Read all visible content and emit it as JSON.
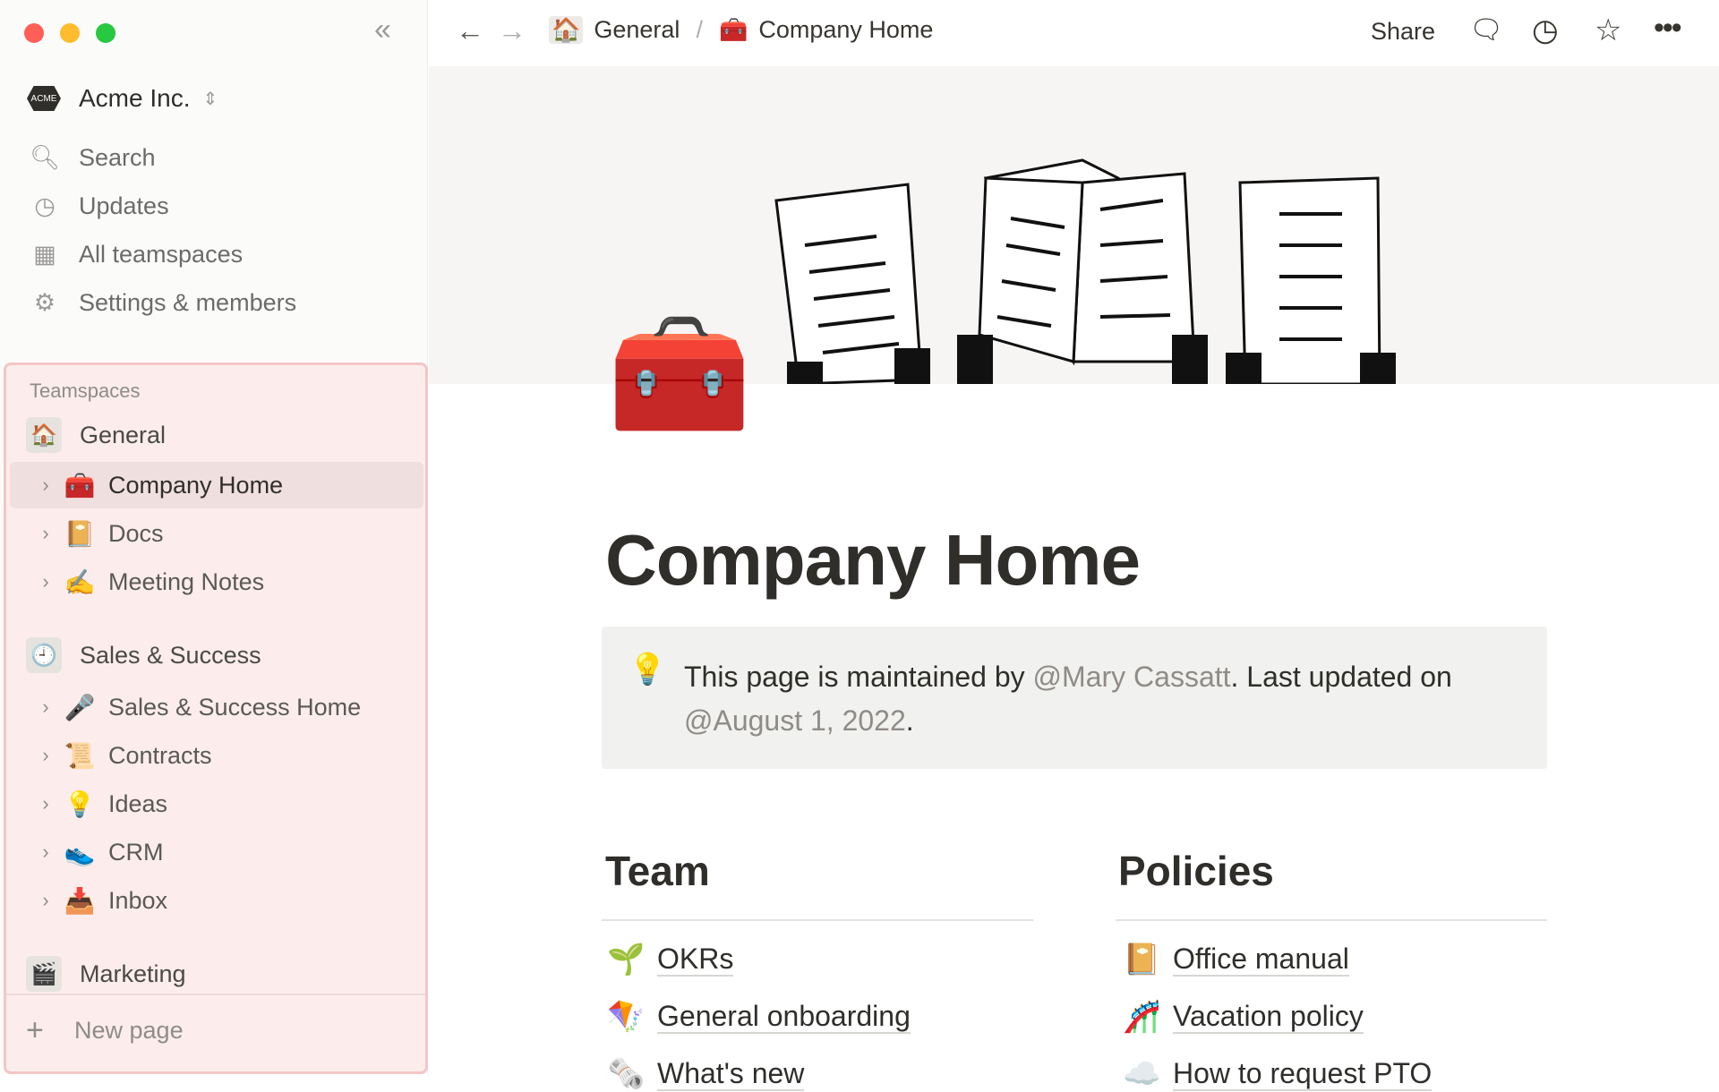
{
  "sidebar": {
    "workspace": "Acme Inc.",
    "workspace_logo": "ACME",
    "nav": [
      {
        "label": "Search",
        "icon": "search-icon"
      },
      {
        "label": "Updates",
        "icon": "clock-icon"
      },
      {
        "label": "All teamspaces",
        "icon": "building-icon"
      },
      {
        "label": "Settings & members",
        "icon": "gear-icon"
      }
    ],
    "teamspaces_label": "Teamspaces",
    "groups": [
      {
        "label": "General",
        "icon": "🏠",
        "pages": [
          {
            "label": "Company Home",
            "emoji": "🧰",
            "selected": true
          },
          {
            "label": "Docs",
            "emoji": "📔"
          },
          {
            "label": "Meeting Notes",
            "emoji": "✍️"
          }
        ]
      },
      {
        "label": "Sales & Success",
        "icon": "🕘",
        "pages": [
          {
            "label": "Sales & Success Home",
            "emoji": "🎤"
          },
          {
            "label": "Contracts",
            "emoji": "📜"
          },
          {
            "label": "Ideas",
            "emoji": "💡"
          },
          {
            "label": "CRM",
            "emoji": "👟"
          },
          {
            "label": "Inbox",
            "emoji": "📥"
          }
        ]
      },
      {
        "label": "Marketing",
        "icon": "🎬",
        "pages": []
      }
    ],
    "new_page": "New page"
  },
  "topbar": {
    "breadcrumb": [
      {
        "label": "General",
        "emoji": "🏠"
      },
      {
        "label": "Company Home",
        "emoji": "🧰"
      }
    ],
    "separator": "/",
    "share": "Share"
  },
  "page": {
    "icon": "🧰",
    "title": "Company Home",
    "callout": {
      "emoji": "💡",
      "text1": "This page is maintained by ",
      "mention1": "@Mary Cassatt",
      "text2": ". Last updated on ",
      "mention2": "@August 1, 2022",
      "text3": "."
    },
    "columns": [
      {
        "heading": "Team",
        "links": [
          {
            "emoji": "🌱",
            "label": "OKRs"
          },
          {
            "emoji": "🪁",
            "label": "General onboarding"
          },
          {
            "emoji": "🗞️",
            "label": "What's new"
          }
        ]
      },
      {
        "heading": "Policies",
        "links": [
          {
            "emoji": "📔",
            "label": "Office manual"
          },
          {
            "emoji": "🎢",
            "label": "Vacation policy"
          },
          {
            "emoji": "☁️",
            "label": "How to request PTO"
          }
        ]
      }
    ]
  },
  "colors": {
    "sidebar_bg": "#fbfbfa",
    "teamspace_highlight": "#fcedec",
    "teamspace_border": "#f3c6c6",
    "selected_row": "#f0dfdf"
  }
}
